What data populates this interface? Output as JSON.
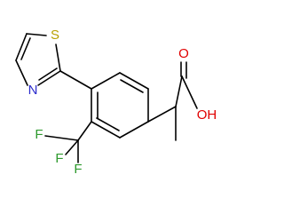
{
  "atoms": {
    "sulfur": "S",
    "nitrogen": "N",
    "carbonyl_oxygen": "O",
    "hydroxyl": "OH",
    "fluorine_1": "F",
    "fluorine_2": "F",
    "fluorine_3": "F"
  }
}
